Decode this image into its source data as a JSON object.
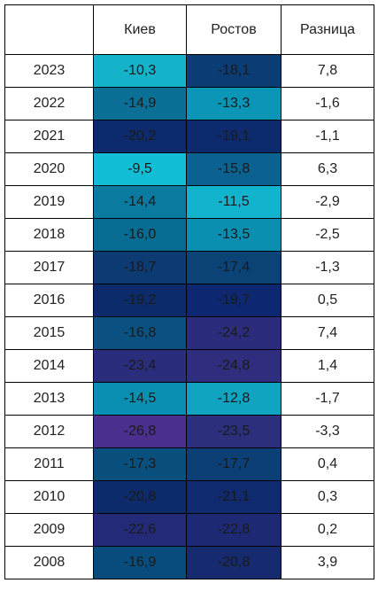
{
  "columns": [
    "",
    "Киев",
    "Ростов",
    "Разница"
  ],
  "rows": [
    {
      "year": "2023",
      "kiev": "-10,3",
      "rostov": "-18,1",
      "diff": "7,8"
    },
    {
      "year": "2022",
      "kiev": "-14,9",
      "rostov": "-13,3",
      "diff": "-1,6"
    },
    {
      "year": "2021",
      "kiev": "-20,2",
      "rostov": "-19,1",
      "diff": "-1,1"
    },
    {
      "year": "2020",
      "kiev": "-9,5",
      "rostov": "-15,8",
      "diff": "6,3"
    },
    {
      "year": "2019",
      "kiev": "-14,4",
      "rostov": "-11,5",
      "diff": "-2,9"
    },
    {
      "year": "2018",
      "kiev": "-16,0",
      "rostov": "-13,5",
      "diff": "-2,5"
    },
    {
      "year": "2017",
      "kiev": "-18,7",
      "rostov": "-17,4",
      "diff": "-1,3"
    },
    {
      "year": "2016",
      "kiev": "-19,2",
      "rostov": "-19,7",
      "diff": "0,5"
    },
    {
      "year": "2015",
      "kiev": "-16,8",
      "rostov": "-24,2",
      "diff": "7,4"
    },
    {
      "year": "2014",
      "kiev": "-23,4",
      "rostov": "-24,8",
      "diff": "1,4"
    },
    {
      "year": "2013",
      "kiev": "-14,5",
      "rostov": "-12,8",
      "diff": "-1,7"
    },
    {
      "year": "2012",
      "kiev": "-26,8",
      "rostov": "-23,5",
      "diff": "-3,3"
    },
    {
      "year": "2011",
      "kiev": "-17,3",
      "rostov": "-17,7",
      "diff": "0,4"
    },
    {
      "year": "2010",
      "kiev": "-20,8",
      "rostov": "-21,1",
      "diff": "0,3"
    },
    {
      "year": "2009",
      "kiev": "-22,6",
      "rostov": "-22,8",
      "diff": "0,2"
    },
    {
      "year": "2008",
      "kiev": "-16,9",
      "rostov": "-20,8",
      "diff": "3,9"
    }
  ],
  "colors": {
    "kiev": [
      "#14b3c9",
      "#0b6f96",
      "#0c2a6c",
      "#12bed6",
      "#0a7a9e",
      "#086b91",
      "#0c3a73",
      "#0c2b6b",
      "#0a5181",
      "#2a2d7c",
      "#0a8fb3",
      "#4b2f8c",
      "#09507f",
      "#0d2b6b",
      "#232a78",
      "#084c7d"
    ],
    "rostov": [
      "#0c3c74",
      "#0b96b8",
      "#0c2a6c",
      "#0b6190",
      "#11b4cc",
      "#0a8fb1",
      "#0c4377",
      "#0d2870",
      "#2b2c7c",
      "#2e2d7e",
      "#10a4c0",
      "#2b2f7c",
      "#0b3f75",
      "#0f2a6e",
      "#1d2a73",
      "#162a70"
    ]
  }
}
